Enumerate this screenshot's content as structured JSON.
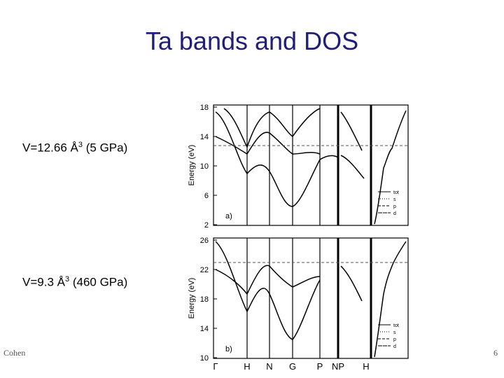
{
  "title": "Ta bands and DOS",
  "panels": [
    {
      "volume_label": "V=12.66 Å",
      "volume_exponent": "3",
      "pressure_label": "(5 GPa)",
      "panel_label": "a)",
      "yaxis_label": "Energy (eV)",
      "yticks": [
        "18",
        "14",
        "10",
        "6",
        "2"
      ],
      "legend": [
        "tot",
        "s",
        "p",
        "d"
      ]
    },
    {
      "volume_label": "V=9.3 Å",
      "volume_exponent": "3",
      "pressure_label": "(460 GPa)",
      "panel_label": "b)",
      "yaxis_label": "Energy (eV)",
      "yticks": [
        "26",
        "22",
        "18",
        "14",
        "10"
      ],
      "legend": [
        "tot",
        "s",
        "p",
        "d"
      ]
    }
  ],
  "kpoints": [
    "Γ",
    "H",
    "N",
    "G",
    "P",
    "NP",
    "H"
  ],
  "footer": {
    "author": "Cohen",
    "page": "6"
  }
}
